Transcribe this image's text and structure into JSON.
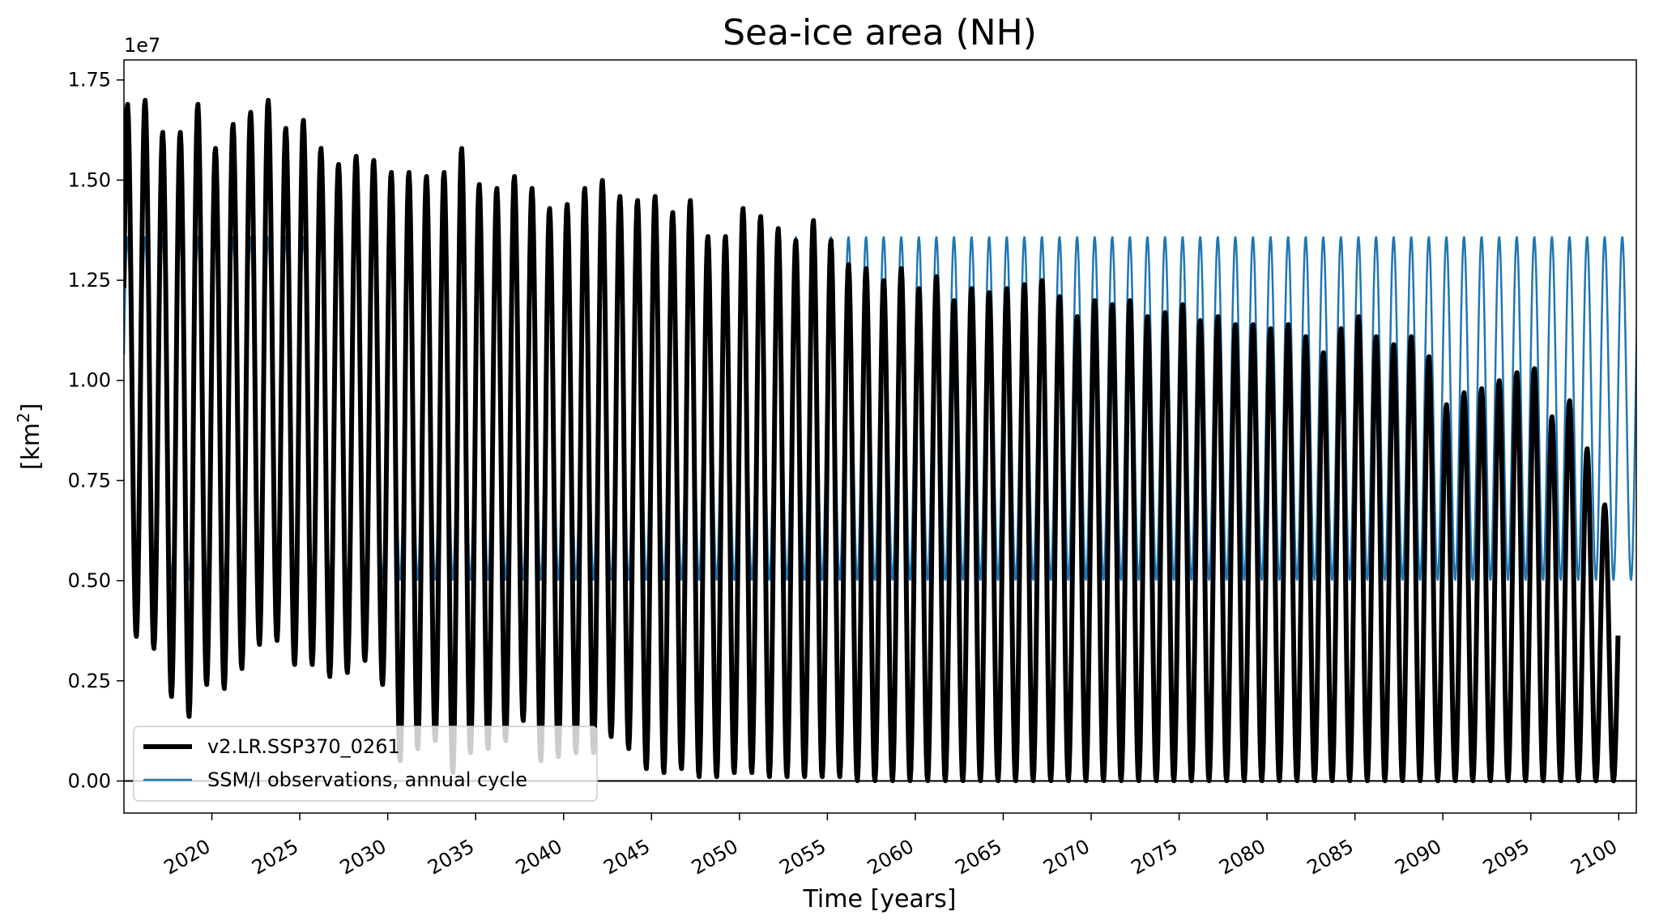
{
  "chart_data": {
    "type": "line",
    "title": "Sea-ice area (NH)",
    "xlabel": "Time [years]",
    "ylabel_main": "[km",
    "ylabel_sup": "2",
    "ylabel_close": "]",
    "y_offset_label": "1e7",
    "xlim": [
      2015,
      2101
    ],
    "ylim": [
      -0.08,
      1.8
    ],
    "y_scale": 10000000,
    "x_ticks": [
      2020,
      2025,
      2030,
      2035,
      2040,
      2045,
      2050,
      2055,
      2060,
      2065,
      2070,
      2075,
      2080,
      2085,
      2090,
      2095,
      2100
    ],
    "x_tick_labels": [
      "2020",
      "2025",
      "2030",
      "2035",
      "2040",
      "2045",
      "2050",
      "2055",
      "2060",
      "2065",
      "2070",
      "2075",
      "2080",
      "2085",
      "2090",
      "2095",
      "2100"
    ],
    "y_ticks": [
      0.0,
      0.25,
      0.5,
      0.75,
      1.0,
      1.25,
      1.5,
      1.75
    ],
    "y_tick_labels": [
      "0.00",
      "0.25",
      "0.50",
      "0.75",
      "1.00",
      "1.25",
      "1.50",
      "1.75"
    ],
    "series": [
      {
        "name": "v2.LR.SSP370_0261",
        "color": "#000000",
        "start_year": 2015,
        "annual_max": [
          1.69,
          1.7,
          1.62,
          1.62,
          1.69,
          1.58,
          1.64,
          1.67,
          1.7,
          1.63,
          1.65,
          1.58,
          1.54,
          1.56,
          1.55,
          1.52,
          1.52,
          1.51,
          1.52,
          1.58,
          1.49,
          1.48,
          1.51,
          1.48,
          1.43,
          1.44,
          1.48,
          1.5,
          1.46,
          1.45,
          1.46,
          1.42,
          1.45,
          1.36,
          1.36,
          1.43,
          1.41,
          1.38,
          1.35,
          1.4,
          1.35,
          1.29,
          1.28,
          1.25,
          1.28,
          1.23,
          1.26,
          1.2,
          1.23,
          1.22,
          1.23,
          1.24,
          1.25,
          1.21,
          1.16,
          1.2,
          1.19,
          1.2,
          1.16,
          1.17,
          1.19,
          1.15,
          1.16,
          1.14,
          1.14,
          1.13,
          1.14,
          1.11,
          1.07,
          1.13,
          1.16,
          1.11,
          1.09,
          1.11,
          1.06,
          0.94,
          0.97,
          0.98,
          1.0,
          1.02,
          1.03,
          0.91,
          0.95,
          0.83,
          0.69
        ],
        "annual_min": [
          0.36,
          0.33,
          0.21,
          0.16,
          0.24,
          0.23,
          0.28,
          0.34,
          0.35,
          0.29,
          0.29,
          0.26,
          0.27,
          0.3,
          0.24,
          0.05,
          0.08,
          0.1,
          0.02,
          0.07,
          0.08,
          0.1,
          0.15,
          0.05,
          0.06,
          0.07,
          0.07,
          0.11,
          0.08,
          0.03,
          0.02,
          0.03,
          0.01,
          0.01,
          0.02,
          0.02,
          0.01,
          0.01,
          0.01,
          0.01,
          0.01,
          0.0,
          0.0,
          0.0,
          0.0,
          0.0,
          0.0,
          0.0,
          0.0,
          0.0,
          0.0,
          0.0,
          0.0,
          0.0,
          0.0,
          0.0,
          0.0,
          0.0,
          0.0,
          0.0,
          0.0,
          0.0,
          0.0,
          0.0,
          0.0,
          0.0,
          0.0,
          0.0,
          0.0,
          0.0,
          0.0,
          0.0,
          0.0,
          0.0,
          0.0,
          0.0,
          0.0,
          0.0,
          0.0,
          0.0,
          0.0,
          0.0,
          0.0,
          0.0,
          0.0
        ]
      },
      {
        "name": "SSM/I observations, annual cycle",
        "color": "#1f77b4",
        "start_year": 2015,
        "annual_max_const": 1.36,
        "annual_min_const": 0.5
      }
    ],
    "legend_position": "lower-left"
  }
}
